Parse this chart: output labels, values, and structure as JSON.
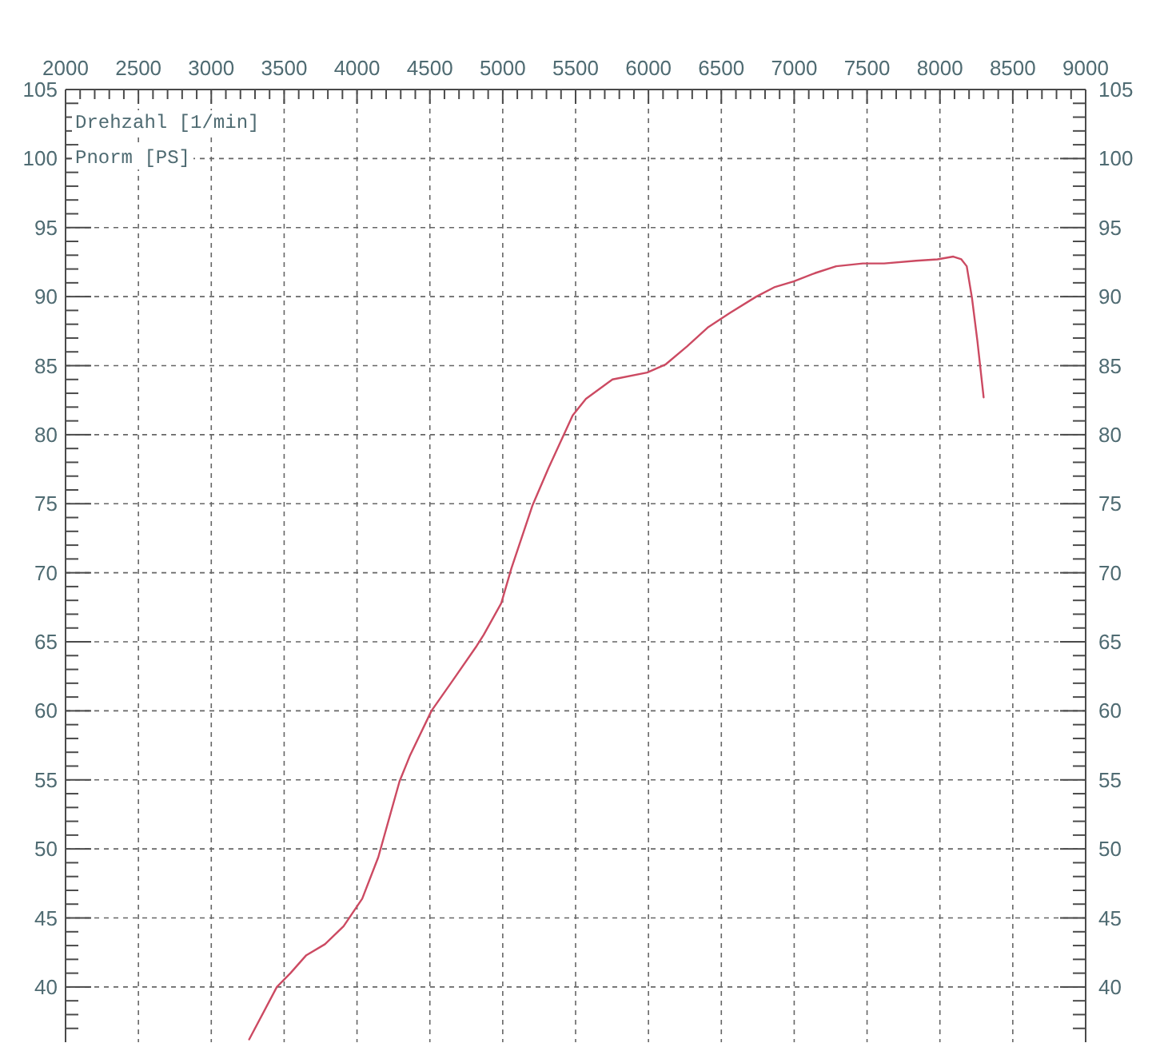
{
  "chart_data": {
    "type": "line",
    "xlabel": "Drehzahl [1/min]",
    "ylabel": "Pnorm [PS]",
    "xlim": [
      2000,
      9000
    ],
    "ylim": [
      36,
      105
    ],
    "y2lim": [
      36,
      105
    ],
    "grid": true,
    "xticks": [
      2000,
      {
        "value": 2100,
        "label": null
      },
      {
        "value": 2200,
        "label": null
      },
      {
        "value": 2300,
        "label": null
      },
      {
        "value": 2400,
        "label": null
      },
      2500,
      {
        "value": 2600,
        "label": null
      },
      {
        "value": 2700,
        "label": null
      },
      {
        "value": 2800,
        "label": null
      },
      {
        "value": 2900,
        "label": null
      },
      3000,
      {
        "value": 3100,
        "label": null
      },
      {
        "value": 3200,
        "label": null
      },
      {
        "value": 3300,
        "label": null
      },
      {
        "value": 3400,
        "label": null
      },
      3500,
      {
        "value": 3600,
        "label": null
      },
      {
        "value": 3700,
        "label": null
      },
      {
        "value": 3800,
        "label": null
      },
      {
        "value": 3900,
        "label": null
      },
      4000,
      {
        "value": 4100,
        "label": null
      },
      {
        "value": 4200,
        "label": null
      },
      {
        "value": 4300,
        "label": null
      },
      {
        "value": 4400,
        "label": null
      },
      4500,
      {
        "value": 4600,
        "label": null
      },
      {
        "value": 4700,
        "label": null
      },
      {
        "value": 4800,
        "label": null
      },
      {
        "value": 4900,
        "label": null
      },
      5000,
      {
        "value": 5100,
        "label": null
      },
      {
        "value": 5200,
        "label": null
      },
      {
        "value": 5300,
        "label": null
      },
      {
        "value": 5400,
        "label": null
      },
      5500,
      {
        "value": 5600,
        "label": null
      },
      {
        "value": 5700,
        "label": null
      },
      {
        "value": 5800,
        "label": null
      },
      {
        "value": 5900,
        "label": null
      },
      6000,
      {
        "value": 6100,
        "label": null
      },
      {
        "value": 6200,
        "label": null
      },
      {
        "value": 6300,
        "label": null
      },
      {
        "value": 6400,
        "label": null
      },
      6500,
      {
        "value": 6600,
        "label": null
      },
      {
        "value": 6700,
        "label": null
      },
      {
        "value": 6800,
        "label": null
      },
      {
        "value": 6900,
        "label": null
      },
      7000,
      {
        "value": 7100,
        "label": null
      },
      {
        "value": 7200,
        "label": null
      },
      {
        "value": 7300,
        "label": null
      },
      {
        "value": 7400,
        "label": null
      },
      7500,
      {
        "value": 7600,
        "label": null
      },
      {
        "value": 7700,
        "label": null
      },
      {
        "value": 7800,
        "label": null
      },
      {
        "value": 7900,
        "label": null
      },
      8000,
      {
        "value": 8100,
        "label": null
      },
      {
        "value": 8200,
        "label": null
      },
      {
        "value": 8300,
        "label": null
      },
      {
        "value": 8400,
        "label": null
      },
      8500,
      {
        "value": 8600,
        "label": null
      },
      {
        "value": 8700,
        "label": null
      },
      {
        "value": 8800,
        "label": null
      },
      {
        "value": 8900,
        "label": null
      },
      9000
    ],
    "yticks": [
      {
        "value": 37,
        "label": null
      },
      {
        "value": 38,
        "label": null
      },
      {
        "value": 39,
        "label": null
      },
      40,
      {
        "value": 41,
        "label": null
      },
      {
        "value": 42,
        "label": null
      },
      {
        "value": 43,
        "label": null
      },
      {
        "value": 44,
        "label": null
      },
      45,
      {
        "value": 46,
        "label": null
      },
      {
        "value": 47,
        "label": null
      },
      {
        "value": 48,
        "label": null
      },
      {
        "value": 49,
        "label": null
      },
      50,
      {
        "value": 51,
        "label": null
      },
      {
        "value": 52,
        "label": null
      },
      {
        "value": 53,
        "label": null
      },
      {
        "value": 54,
        "label": null
      },
      55,
      {
        "value": 56,
        "label": null
      },
      {
        "value": 57,
        "label": null
      },
      {
        "value": 58,
        "label": null
      },
      {
        "value": 59,
        "label": null
      },
      60,
      {
        "value": 61,
        "label": null
      },
      {
        "value": 62,
        "label": null
      },
      {
        "value": 63,
        "label": null
      },
      {
        "value": 64,
        "label": null
      },
      65,
      {
        "value": 66,
        "label": null
      },
      {
        "value": 67,
        "label": null
      },
      {
        "value": 68,
        "label": null
      },
      {
        "value": 69,
        "label": null
      },
      70,
      {
        "value": 71,
        "label": null
      },
      {
        "value": 72,
        "label": null
      },
      {
        "value": 73,
        "label": null
      },
      {
        "value": 74,
        "label": null
      },
      75,
      {
        "value": 76,
        "label": null
      },
      {
        "value": 77,
        "label": null
      },
      {
        "value": 78,
        "label": null
      },
      {
        "value": 79,
        "label": null
      },
      80,
      {
        "value": 81,
        "label": null
      },
      {
        "value": 82,
        "label": null
      },
      {
        "value": 83,
        "label": null
      },
      {
        "value": 84,
        "label": null
      },
      85,
      {
        "value": 86,
        "label": null
      },
      {
        "value": 87,
        "label": null
      },
      {
        "value": 88,
        "label": null
      },
      {
        "value": 89,
        "label": null
      },
      90,
      {
        "value": 91,
        "label": null
      },
      {
        "value": 92,
        "label": null
      },
      {
        "value": 93,
        "label": null
      },
      {
        "value": 94,
        "label": null
      },
      95,
      {
        "value": 96,
        "label": null
      },
      {
        "value": 97,
        "label": null
      },
      {
        "value": 98,
        "label": null
      },
      {
        "value": 99,
        "label": null
      },
      100,
      {
        "value": 101,
        "label": null
      },
      {
        "value": 102,
        "label": null
      },
      {
        "value": 103,
        "label": null
      },
      {
        "value": 104,
        "label": null
      },
      105
    ],
    "y2ticks": [
      {
        "value": 37,
        "label": null
      },
      {
        "value": 38,
        "label": null
      },
      {
        "value": 39,
        "label": null
      },
      40,
      {
        "value": 41,
        "label": null
      },
      {
        "value": 42,
        "label": null
      },
      {
        "value": 43,
        "label": null
      },
      {
        "value": 44,
        "label": null
      },
      45,
      {
        "value": 46,
        "label": null
      },
      {
        "value": 47,
        "label": null
      },
      {
        "value": 48,
        "label": null
      },
      {
        "value": 49,
        "label": null
      },
      50,
      {
        "value": 51,
        "label": null
      },
      {
        "value": 52,
        "label": null
      },
      {
        "value": 53,
        "label": null
      },
      {
        "value": 54,
        "label": null
      },
      55,
      {
        "value": 56,
        "label": null
      },
      {
        "value": 57,
        "label": null
      },
      {
        "value": 58,
        "label": null
      },
      {
        "value": 59,
        "label": null
      },
      60,
      {
        "value": 61,
        "label": null
      },
      {
        "value": 62,
        "label": null
      },
      {
        "value": 63,
        "label": null
      },
      {
        "value": 64,
        "label": null
      },
      65,
      {
        "value": 66,
        "label": null
      },
      {
        "value": 67,
        "label": null
      },
      {
        "value": 68,
        "label": null
      },
      {
        "value": 69,
        "label": null
      },
      70,
      {
        "value": 71,
        "label": null
      },
      {
        "value": 72,
        "label": null
      },
      {
        "value": 73,
        "label": null
      },
      {
        "value": 74,
        "label": null
      },
      75,
      {
        "value": 76,
        "label": null
      },
      {
        "value": 77,
        "label": null
      },
      {
        "value": 78,
        "label": null
      },
      {
        "value": 79,
        "label": null
      },
      80,
      {
        "value": 81,
        "label": null
      },
      {
        "value": 82,
        "label": null
      },
      {
        "value": 83,
        "label": null
      },
      {
        "value": 84,
        "label": null
      },
      85,
      {
        "value": 86,
        "label": null
      },
      {
        "value": 87,
        "label": null
      },
      {
        "value": 88,
        "label": null
      },
      {
        "value": 89,
        "label": null
      },
      90,
      {
        "value": 91,
        "label": null
      },
      {
        "value": 92,
        "label": null
      },
      {
        "value": 93,
        "label": null
      },
      {
        "value": 94,
        "label": null
      },
      95,
      {
        "value": 96,
        "label": null
      },
      {
        "value": 97,
        "label": null
      },
      {
        "value": 98,
        "label": null
      },
      {
        "value": 99,
        "label": null
      },
      100,
      {
        "value": 101,
        "label": null
      },
      {
        "value": 102,
        "label": null
      },
      {
        "value": 103,
        "label": null
      },
      {
        "value": 104,
        "label": null
      },
      105
    ],
    "x": [
      3260,
      3450,
      3543,
      3652,
      3780,
      3908,
      4036,
      4146,
      4292,
      4365,
      4511,
      4657,
      4821,
      4869,
      4990,
      5059,
      5205,
      5315,
      5480,
      5571,
      5753,
      5991,
      6119,
      6265,
      6411,
      6557,
      6740,
      6868,
      6996,
      7142,
      7288,
      7471,
      7617,
      7836,
      7983,
      8092,
      8147,
      8184,
      8220,
      8257,
      8300
    ],
    "series": [
      {
        "color": "#cc4a62",
        "values": [
          36.2,
          40,
          41,
          42.3,
          43.1,
          44.4,
          46.4,
          49.4,
          54.9,
          56.8,
          60,
          62.2,
          64.7,
          65.5,
          67.8,
          70.3,
          74.9,
          77.6,
          81.4,
          82.6,
          84,
          84.5,
          85.1,
          86.4,
          87.8,
          88.8,
          90,
          90.7,
          91.1,
          91.7,
          92.2,
          92.4,
          92.4,
          92.6,
          92.7,
          92.9,
          92.7,
          92.2,
          89.9,
          86.8,
          82.7
        ]
      }
    ]
  }
}
